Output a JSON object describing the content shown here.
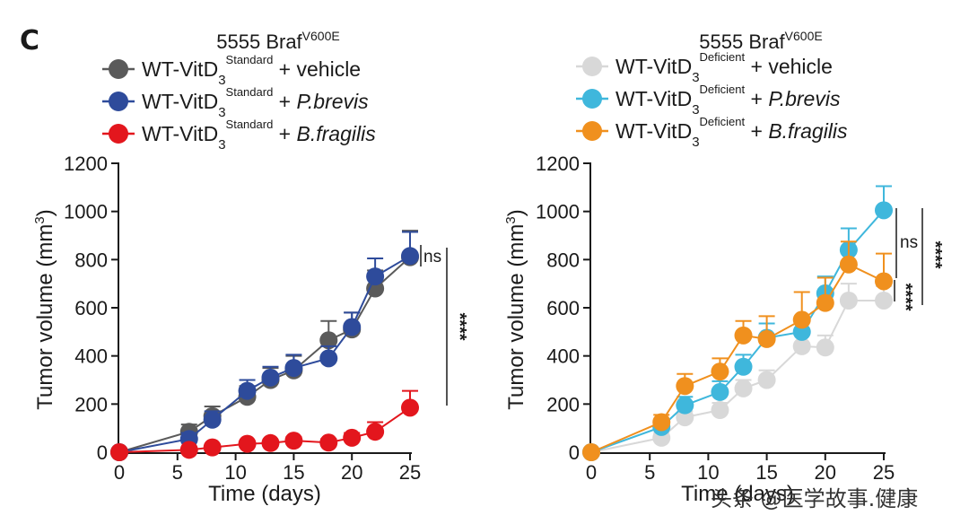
{
  "panel_letter": "C",
  "watermark": "头条 @医学故事.健康",
  "chart_data": [
    {
      "type": "line",
      "title": "5555 Braf",
      "title_superscript": "V600E",
      "xlabel": "Time (days)",
      "ylabel": "Tumor volume (mm",
      "ylabel_superscript": "3",
      "ylabel_suffix": ")",
      "xlim": [
        0,
        25
      ],
      "ylim": [
        0,
        1200
      ],
      "xticks": [
        0,
        5,
        10,
        15,
        20,
        25
      ],
      "yticks": [
        0,
        200,
        400,
        600,
        800,
        1000,
        1200
      ],
      "grid": false,
      "legend_position": "top",
      "series": [
        {
          "name_main": "WT-VitD",
          "name_sub": "3",
          "name_sup": "Standard",
          "name_rest": "+ vehicle",
          "name_italic": "",
          "color": "#5a5a5a",
          "x": [
            0,
            6,
            8,
            11,
            13,
            15,
            18,
            20,
            22,
            25
          ],
          "y": [
            0,
            85,
            150,
            230,
            300,
            340,
            465,
            510,
            680,
            810
          ],
          "err": [
            0,
            30,
            40,
            45,
            50,
            60,
            80,
            70,
            75,
            110
          ]
        },
        {
          "name_main": "WT-VitD",
          "name_sub": "3",
          "name_sup": "Standard",
          "name_rest": "+ ",
          "name_italic": "P.brevis",
          "color": "#2e4b9b",
          "x": [
            0,
            6,
            8,
            11,
            13,
            15,
            18,
            20,
            22,
            25
          ],
          "y": [
            0,
            55,
            135,
            255,
            310,
            350,
            390,
            520,
            730,
            815
          ],
          "err": [
            0,
            25,
            35,
            45,
            45,
            55,
            50,
            60,
            75,
            100
          ]
        },
        {
          "name_main": "WT-VitD",
          "name_sub": "3",
          "name_sup": "Standard",
          "name_rest": "+ ",
          "name_italic": "B.fragilis",
          "color": "#e3161d",
          "x": [
            0,
            6,
            8,
            11,
            13,
            15,
            18,
            20,
            22,
            25
          ],
          "y": [
            0,
            10,
            20,
            35,
            38,
            48,
            40,
            60,
            85,
            185
          ],
          "err": [
            0,
            10,
            10,
            12,
            12,
            15,
            15,
            20,
            40,
            70
          ]
        }
      ],
      "annotations": [
        {
          "text": "ns",
          "kind": "bracket",
          "between": [
            "WT-VitD3 Standard + vehicle",
            "WT-VitD3 Standard + P.brevis"
          ],
          "at_x": 25
        },
        {
          "text": "****",
          "kind": "bracket",
          "between": [
            "WT-VitD3 Standard + vehicle",
            "WT-VitD3 Standard + B.fragilis"
          ],
          "at_x": 25
        }
      ]
    },
    {
      "type": "line",
      "title": "5555 Braf",
      "title_superscript": "V600E",
      "xlabel": "Time (days)",
      "ylabel": "Tumor volume (mm",
      "ylabel_superscript": "3",
      "ylabel_suffix": ")",
      "xlim": [
        0,
        25
      ],
      "ylim": [
        0,
        1200
      ],
      "xticks": [
        0,
        5,
        10,
        15,
        20,
        25
      ],
      "yticks": [
        0,
        200,
        400,
        600,
        800,
        1000,
        1200
      ],
      "grid": false,
      "legend_position": "top",
      "series": [
        {
          "name_main": "WT-VitD",
          "name_sub": "3",
          "name_sup": "Deficient",
          "name_rest": "+ vehicle",
          "name_italic": "",
          "color": "#d8d8d8",
          "x": [
            0,
            6,
            8,
            11,
            13,
            15,
            18,
            20,
            22,
            25
          ],
          "y": [
            0,
            60,
            145,
            175,
            265,
            300,
            440,
            435,
            630,
            630
          ],
          "err": [
            0,
            20,
            25,
            30,
            35,
            40,
            50,
            50,
            70,
            60
          ]
        },
        {
          "name_main": "WT-VitD",
          "name_sub": "3",
          "name_sup": "Deficient",
          "name_rest": "+ ",
          "name_italic": "P.brevis",
          "color": "#3fb7dc",
          "x": [
            0,
            6,
            8,
            11,
            13,
            15,
            18,
            20,
            22,
            25
          ],
          "y": [
            0,
            105,
            195,
            250,
            355,
            475,
            500,
            660,
            840,
            1005
          ],
          "err": [
            0,
            30,
            35,
            45,
            50,
            60,
            60,
            70,
            90,
            100
          ]
        },
        {
          "name_main": "WT-VitD",
          "name_sub": "3",
          "name_sup": "Deficient",
          "name_rest": "+ ",
          "name_italic": "B.fragilis",
          "color": "#f0901e",
          "x": [
            0,
            6,
            8,
            11,
            13,
            15,
            18,
            20,
            22,
            25
          ],
          "y": [
            0,
            125,
            275,
            335,
            485,
            470,
            550,
            620,
            780,
            710
          ],
          "err": [
            0,
            30,
            50,
            55,
            60,
            95,
            115,
            105,
            95,
            115
          ]
        }
      ],
      "annotations": [
        {
          "text": "ns",
          "kind": "bracket",
          "between": [
            "WT-VitD3 Deficient + P.brevis",
            "WT-VitD3 Deficient + B.fragilis"
          ],
          "at_x": 25
        },
        {
          "text": "****",
          "kind": "bracket",
          "between": [
            "WT-VitD3 Deficient + P.brevis",
            "WT-VitD3 Deficient + vehicle"
          ],
          "at_x": 25
        },
        {
          "text": "****",
          "kind": "bracket",
          "between": [
            "WT-VitD3 Deficient + B.fragilis",
            "WT-VitD3 Deficient + vehicle"
          ],
          "at_x": 25
        }
      ]
    }
  ]
}
